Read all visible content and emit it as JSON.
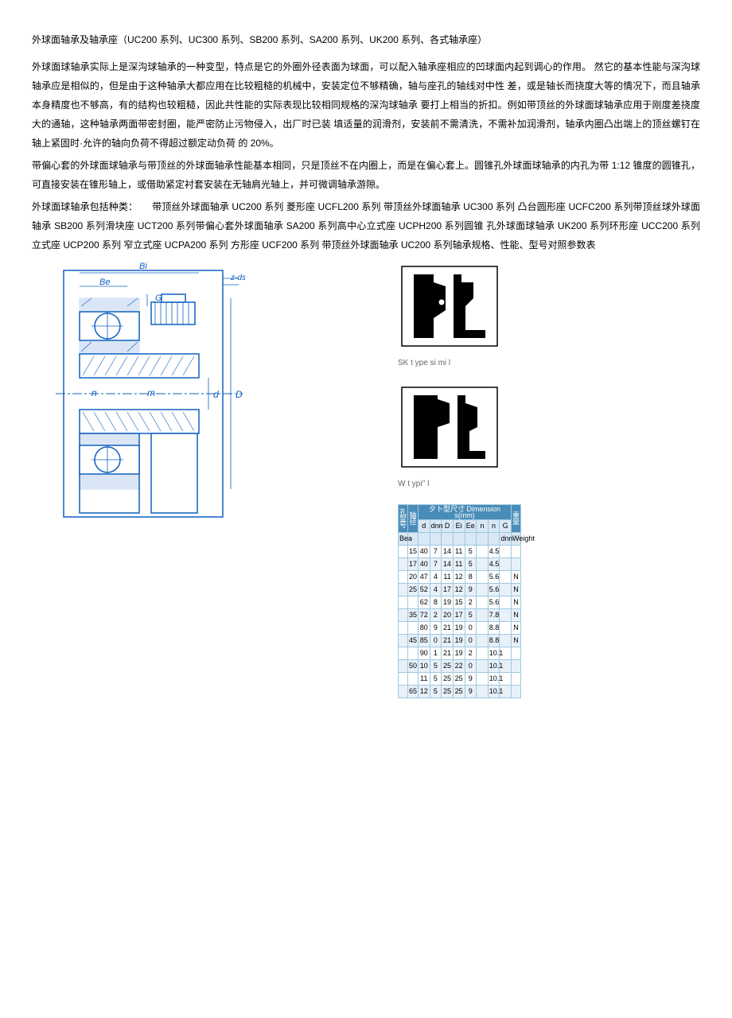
{
  "title": "外球面轴承及轴承座（UC200 系列、UC300 系列、SB200 系列、SA200 系列、UK200 系列、各式轴承座）",
  "para1": "外球面球轴承实际上是深沟球轴承的一种变型，特点是它的外圈外径表面为球面，可以配入轴承座相应的凹球面内起到调心的作用。 然它的基本性能与深沟球轴承应是相似的，但是由于这种轴承大都应用在比较粗糙的机械中，安装定位不够精确，轴与座孔的轴线对中性 差，或是轴长而挠度大等的情况下，而且轴承本身精度也不够高，有的结构也较粗糙，因此共性能的实际表现比较相同规格的深沟球轴承 要打上相当的折扣。例如带顶丝的外球面球轴承应用于刚度差挠度大的通轴，这种轴承两面带密封圈，能严密防止污物侵入，出厂时已装 填适量的润滑剂，安装前不需清洗，不需补加润滑剂，轴承内圈凸出端上的顶丝螺钉在轴上紧固时·允许的轴向负荷不得超过额定动负荷 的 20%。",
  "para2": "带偏心套的外球面球轴承与带顶丝的外球面轴承性能基本相同，只是顶丝不在内圈上，而是在偏心套上。圆锥孔外球面球轴承的内孔为带 1:12 锥度的圆锥孔，可直接安装在锥形轴上，或借助紧定衬套安装在无轴肩光轴上，并可微调轴承游隙。",
  "para3": "外球面球轴承包括种类：　　带顶丝外球面轴承 UC200 系列 菱形座 UCFL200 系列 带顶丝外球面轴承 UC300 系列 凸台圆形座 UCFC200 系列带顶丝球外球面轴承 SB200 系列滑块座 UCT200 系列带偏心套外球面轴承 SA200 系列高中心立式座 UCPH200 系列圆锥 孔外球面球轴承 UK200 系列环形座 UCC200 系列 立式座 UCP200 系列 窄立式座 UCPA200 系列 方形座 UCF200 系列 带顶丝外球面轴承 UC200 系列轴承规格、性能、型号对照参数表",
  "seal_label1": "SK t ype si mi l",
  "seal_label2": "W t ypi'' l",
  "table": {
    "header_col1": "孔型号",
    "header_col2": "轴径",
    "header_dim": "夕卜型尺寸 Dimension s(mm)",
    "header_weight": "重量",
    "sub_bea": "Bea",
    "sub_d": "d",
    "sub_dn": "dnn",
    "sub_D": "D",
    "sub_Ei": "Ei",
    "sub_Ee": "Ee",
    "sub_n1": "n",
    "sub_n2": "n",
    "sub_G": "G",
    "sub_dn2": "dnn",
    "sub_w": "Weight",
    "rows": [
      [
        "",
        "15",
        "40",
        "7",
        "14",
        "11",
        "5",
        "",
        "4.5",
        "",
        " "
      ],
      [
        "",
        "17",
        "40",
        "7",
        "14",
        "11",
        "5",
        "",
        "4.5",
        "",
        " "
      ],
      [
        "",
        "20",
        "47",
        "4",
        "11",
        "12",
        "8",
        "",
        "5.6",
        "",
        "N"
      ],
      [
        "",
        "25",
        "52",
        "4",
        "17",
        "12",
        "9",
        "",
        "5.6",
        "",
        "N"
      ],
      [
        "",
        "",
        "62",
        "8",
        "19",
        "15",
        "2",
        "",
        "5.6",
        "",
        "N"
      ],
      [
        "",
        "35",
        "72",
        "2",
        "20",
        "17",
        "5",
        "",
        "7.8",
        "",
        "N"
      ],
      [
        "",
        "",
        "80",
        "9",
        "21",
        "19",
        "0",
        "",
        "8.8",
        "",
        "N"
      ],
      [
        "",
        "45",
        "85",
        "0",
        "21",
        "19",
        "0",
        "",
        "8.8",
        "",
        "N"
      ],
      [
        "",
        "",
        "90",
        "1",
        "21",
        "19",
        "2",
        "",
        "10.1",
        "",
        ""
      ],
      [
        "",
        "50",
        "10",
        "5",
        "25",
        "22",
        "0",
        "",
        "10.1",
        "",
        ""
      ],
      [
        "",
        "",
        "11",
        "5",
        "25",
        "25",
        "9",
        "",
        "10.1",
        "",
        ""
      ],
      [
        "",
        "65",
        "12",
        "5",
        "25",
        "25",
        "9",
        "",
        "10.1",
        "",
        ""
      ]
    ],
    "colors": {
      "header_bg": "#4a8cb8",
      "subheader_bg": "#d8e8f4",
      "row_alt": "#e8f0f8",
      "border": "#a0c8e0"
    }
  },
  "diagram_colors": {
    "line_color": "#1060c0",
    "label_color": "#1060c0",
    "hatch_color": "#1060c0"
  }
}
